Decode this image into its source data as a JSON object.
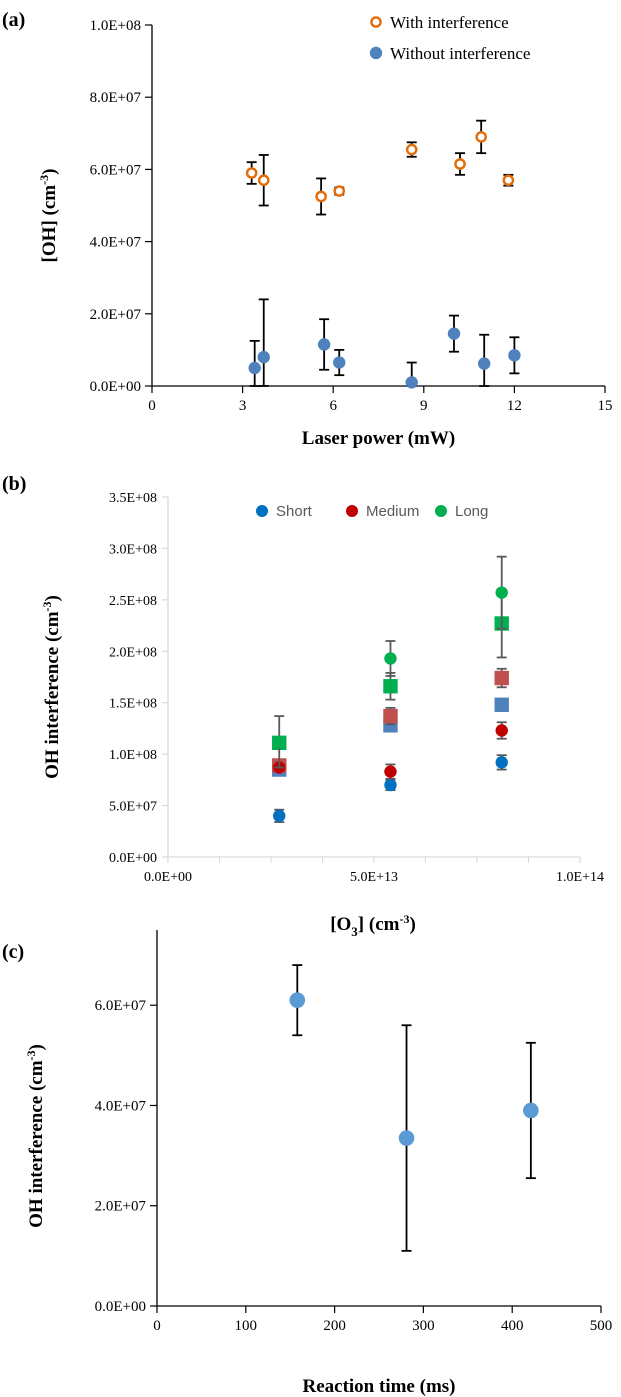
{
  "chart_data": [
    {
      "panel": "(a)",
      "type": "scatter",
      "xlabel": "Laser power (mW)",
      "ylabel": "[OH] (cm",
      "ylabel_sup": "-3",
      "ylabel_end": ")",
      "xlim": [
        0,
        15
      ],
      "ylim": [
        0,
        100000000
      ],
      "x_ticks": [
        0,
        3,
        6,
        9,
        12,
        15
      ],
      "x_tick_labels": [
        "0",
        "3",
        "6",
        "9",
        "12",
        "15"
      ],
      "y_ticks": [
        0,
        20000000,
        40000000,
        60000000,
        80000000,
        100000000
      ],
      "y_tick_labels": [
        "0.0E+00",
        "2.0E+07",
        "4.0E+07",
        "6.0E+07",
        "8.0E+07",
        "1.0E+08"
      ],
      "grid": false,
      "legend_position": "top-right",
      "series": [
        {
          "name": "With interference",
          "marker": "open-circle",
          "color": "#E36C09",
          "x": [
            3.3,
            3.7,
            5.6,
            6.2,
            8.6,
            10.2,
            10.9,
            11.8
          ],
          "y": [
            59000000,
            57000000,
            52500000,
            54000000,
            65500000,
            61500000,
            69000000,
            57000000
          ],
          "err": [
            3000000,
            7000000,
            5000000,
            1000000,
            2000000,
            3000000,
            4500000,
            1500000
          ]
        },
        {
          "name": "Without interference",
          "marker": "filled-circle",
          "color": "#4F81BD",
          "x": [
            3.4,
            3.7,
            5.7,
            6.2,
            8.6,
            10.0,
            11.0,
            12.0
          ],
          "y": [
            5000000,
            8000000,
            11500000,
            6500000,
            1000000,
            14500000,
            6200000,
            8500000
          ],
          "err": [
            7500000,
            16000000,
            7000000,
            3500000,
            5500000,
            5000000,
            8000000,
            5000000
          ]
        }
      ]
    },
    {
      "panel": "(b)",
      "type": "scatter",
      "xlabel": "[O",
      "xlabel_sub": "3",
      "xlabel_end": "] (cm",
      "xlabel_sup": "-3",
      "xlabel_close": ")",
      "ylabel": "OH  interference (cm",
      "ylabel_sup": "-3",
      "ylabel_end": ")",
      "xlim": [
        0,
        100000000000000
      ],
      "ylim": [
        0,
        350000000
      ],
      "x_ticks": [
        0,
        50000000000000,
        100000000000000
      ],
      "x_tick_labels": [
        "0.0E+00",
        "5.0E+13",
        "1.0E+14"
      ],
      "y_ticks": [
        0,
        50000000,
        100000000,
        150000000,
        200000000,
        250000000,
        300000000,
        350000000
      ],
      "y_tick_labels": [
        "0.0E+00",
        "5.0E+07",
        "1.0E+08",
        "1.5E+08",
        "2.0E+08",
        "2.5E+08",
        "3.0E+08",
        "3.5E+08"
      ],
      "grid": false,
      "legend_position": "top",
      "series": [
        {
          "name": "Short",
          "marker": "filled-circle",
          "color": "#0070C0",
          "x": [
            27000000000000,
            54000000000000,
            81000000000000
          ],
          "y": [
            40000000,
            70000000,
            92000000
          ],
          "err": [
            6000000,
            5000000,
            7000000
          ]
        },
        {
          "name": "Medium",
          "marker": "filled-circle",
          "color": "#C00000",
          "x": [
            27000000000000,
            54000000000000,
            81000000000000
          ],
          "y": [
            87000000,
            83000000,
            123000000
          ],
          "err": [
            0,
            7000000,
            8000000
          ]
        },
        {
          "name": "Long",
          "marker": "filled-circle",
          "color": "#00B050",
          "x": [
            27000000000000,
            54000000000000,
            81000000000000
          ],
          "y": [
            112000000,
            193000000,
            257000000
          ],
          "err": [
            25000000,
            17000000,
            35000000
          ]
        },
        {
          "marker": "square",
          "color": "#4F81BD",
          "x": [
            27000000000000,
            54000000000000,
            81000000000000
          ],
          "y": [
            85000000,
            128000000,
            148000000
          ],
          "err": [
            0,
            5000000,
            5000000
          ]
        },
        {
          "marker": "square",
          "color": "#C0504D",
          "x": [
            27000000000000,
            54000000000000,
            81000000000000
          ],
          "y": [
            89000000,
            137000000,
            174000000
          ],
          "err": [
            0,
            8000000,
            9000000
          ]
        },
        {
          "marker": "square",
          "color": "#00B050",
          "x": [
            27000000000000,
            54000000000000,
            81000000000000
          ],
          "y": [
            111000000,
            166000000,
            227000000
          ],
          "err": [
            0,
            13000000,
            33000000
          ]
        }
      ]
    },
    {
      "panel": "(c)",
      "type": "scatter",
      "xlabel": "Reaction time (ms)",
      "ylabel": "OH  interference (cm",
      "ylabel_sup": "-3",
      "ylabel_end": ")",
      "xlim": [
        0,
        500
      ],
      "ylim": [
        0,
        75000000
      ],
      "x_ticks": [
        0,
        100,
        200,
        300,
        400,
        500
      ],
      "x_tick_labels": [
        "0",
        "100",
        "200",
        "300",
        "400",
        "500"
      ],
      "y_ticks": [
        0,
        20000000,
        40000000,
        60000000
      ],
      "y_tick_labels": [
        "0.0E+00",
        "2.0E+07",
        "4.0E+07",
        "6.0E+07"
      ],
      "grid": false,
      "series": [
        {
          "marker": "filled-circle",
          "color": "#5B9BD5",
          "x": [
            158,
            281,
            421
          ],
          "y": [
            61000000,
            33500000,
            39000000
          ],
          "err": [
            7000000,
            22500000,
            13500000
          ]
        }
      ]
    }
  ]
}
